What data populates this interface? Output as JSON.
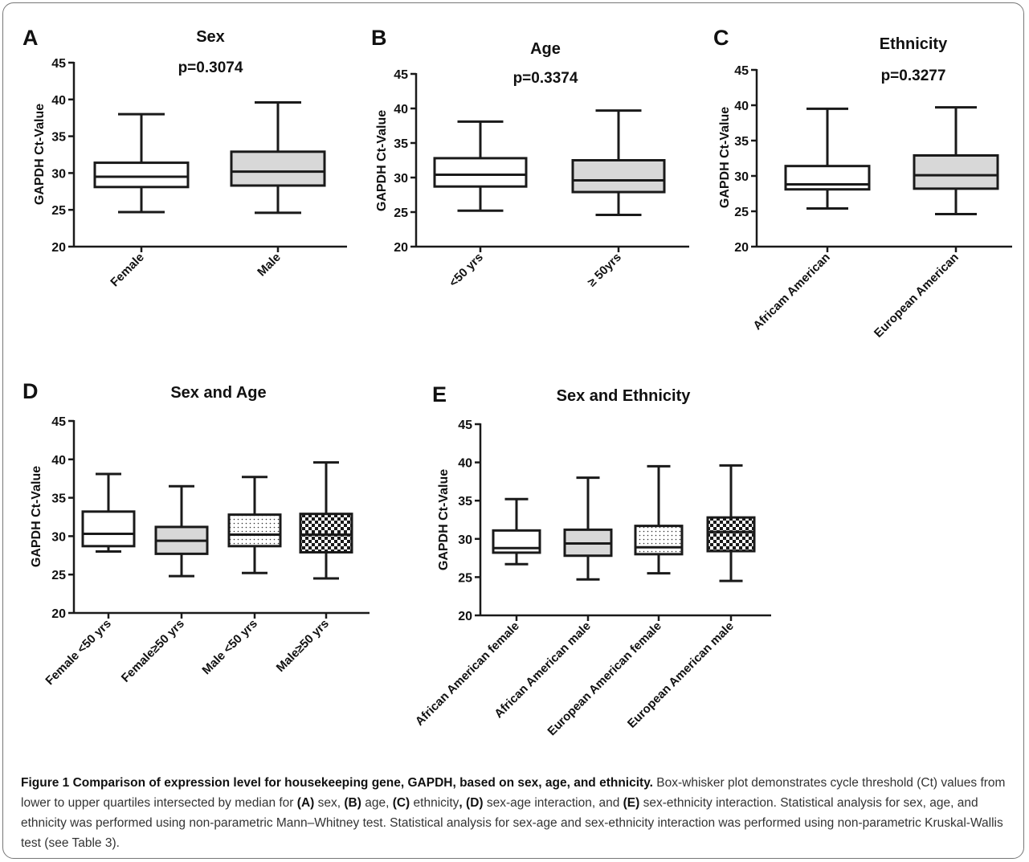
{
  "colors": {
    "white_fill": "#ffffff",
    "grey_fill": "#d8d8d8",
    "stroke": "#1a1a1a"
  },
  "chart_data": [
    {
      "panel": "A",
      "type": "box",
      "title": "Sex",
      "pvalue": "p=0.3074",
      "ylabel": "GAPDH Ct-Value",
      "ylim": [
        20,
        45
      ],
      "yticks": [
        20,
        25,
        30,
        35,
        40,
        45
      ],
      "categories": [
        "Female",
        "Male"
      ],
      "boxes": [
        {
          "min": 24.7,
          "q1": 28.1,
          "median": 29.5,
          "q3": 31.4,
          "max": 38.0,
          "fill": "white"
        },
        {
          "min": 24.6,
          "q1": 28.3,
          "median": 30.2,
          "q3": 32.9,
          "max": 39.6,
          "fill": "grey"
        }
      ]
    },
    {
      "panel": "B",
      "type": "box",
      "title": "Age",
      "pvalue": "p=0.3374",
      "ylabel": "GAPDH Ct-Value",
      "ylim": [
        20,
        45
      ],
      "yticks": [
        20,
        25,
        30,
        35,
        40,
        45
      ],
      "categories": [
        "<50 yrs",
        "≥ 50yrs"
      ],
      "boxes": [
        {
          "min": 25.2,
          "q1": 28.7,
          "median": 30.4,
          "q3": 32.8,
          "max": 38.1,
          "fill": "white"
        },
        {
          "min": 24.6,
          "q1": 27.9,
          "median": 29.6,
          "q3": 32.5,
          "max": 39.7,
          "fill": "grey"
        }
      ]
    },
    {
      "panel": "C",
      "type": "box",
      "title": "Ethnicity",
      "pvalue": "p=0.3277",
      "ylabel": "GAPDH Ct-Value",
      "ylim": [
        20,
        45
      ],
      "yticks": [
        20,
        25,
        30,
        35,
        40,
        45
      ],
      "categories": [
        "Africam American",
        "European American"
      ],
      "boxes": [
        {
          "min": 25.4,
          "q1": 28.1,
          "median": 28.8,
          "q3": 31.4,
          "max": 39.5,
          "fill": "white"
        },
        {
          "min": 24.6,
          "q1": 28.2,
          "median": 30.1,
          "q3": 32.9,
          "max": 39.7,
          "fill": "grey"
        }
      ]
    },
    {
      "panel": "D",
      "type": "box",
      "title": "Sex and Age",
      "pvalue": "",
      "ylabel": "GAPDH Ct-Value",
      "ylim": [
        20,
        45
      ],
      "yticks": [
        20,
        25,
        30,
        35,
        40,
        45
      ],
      "categories": [
        "Female <50 yrs",
        "Female≥50 yrs",
        "Male <50 yrs",
        "Male≥50 yrs"
      ],
      "boxes": [
        {
          "min": 28.0,
          "q1": 28.7,
          "median": 30.3,
          "q3": 33.2,
          "max": 38.1,
          "fill": "white"
        },
        {
          "min": 24.8,
          "q1": 27.7,
          "median": 29.4,
          "q3": 31.2,
          "max": 36.5,
          "fill": "grey"
        },
        {
          "min": 25.2,
          "q1": 28.7,
          "median": 30.2,
          "q3": 32.8,
          "max": 37.7,
          "fill": "dots"
        },
        {
          "min": 24.5,
          "q1": 27.9,
          "median": 30.2,
          "q3": 32.9,
          "max": 39.6,
          "fill": "checker"
        }
      ]
    },
    {
      "panel": "E",
      "type": "box",
      "title": "Sex and Ethnicity",
      "pvalue": "",
      "ylabel": "GAPDH Ct-Value",
      "ylim": [
        20,
        45
      ],
      "yticks": [
        20,
        25,
        30,
        35,
        40,
        45
      ],
      "categories": [
        "African American female",
        "African American male",
        "European American female",
        "European American male"
      ],
      "boxes": [
        {
          "min": 26.7,
          "q1": 28.2,
          "median": 28.8,
          "q3": 31.1,
          "max": 35.2,
          "fill": "white"
        },
        {
          "min": 24.7,
          "q1": 27.8,
          "median": 29.4,
          "q3": 31.2,
          "max": 38.0,
          "fill": "grey"
        },
        {
          "min": 25.5,
          "q1": 28.0,
          "median": 28.9,
          "q3": 31.7,
          "max": 39.5,
          "fill": "dots"
        },
        {
          "min": 24.5,
          "q1": 28.4,
          "median": 30.9,
          "q3": 32.8,
          "max": 39.6,
          "fill": "checker"
        }
      ]
    }
  ],
  "caption": {
    "figure_label": "Figure 1",
    "title": "Comparison of expression level for housekeeping gene, GAPDH, based on sex, age, and ethnicity.",
    "part1": "Box-whisker plot demonstrates cycle threshold (Ct) values from lower to upper quartiles intersected by median for",
    "refA": "(A)",
    "txtA": "sex,",
    "refB": "(B)",
    "txtB": "age,",
    "refC": "(C)",
    "txtC": "ethnicity",
    "comma": ",",
    "refD": "(D)",
    "txtD": "sex-age interaction, and",
    "refE": "(E)",
    "txtE": "sex-ethnicity interaction. Statistical analysis for sex, age, and ethnicity was performed using non-parametric Mann–Whitney test. Statistical analysis for sex-age and sex-ethnicity interaction was performed using non-parametric Kruskal-Wallis test (see Table 3)."
  }
}
